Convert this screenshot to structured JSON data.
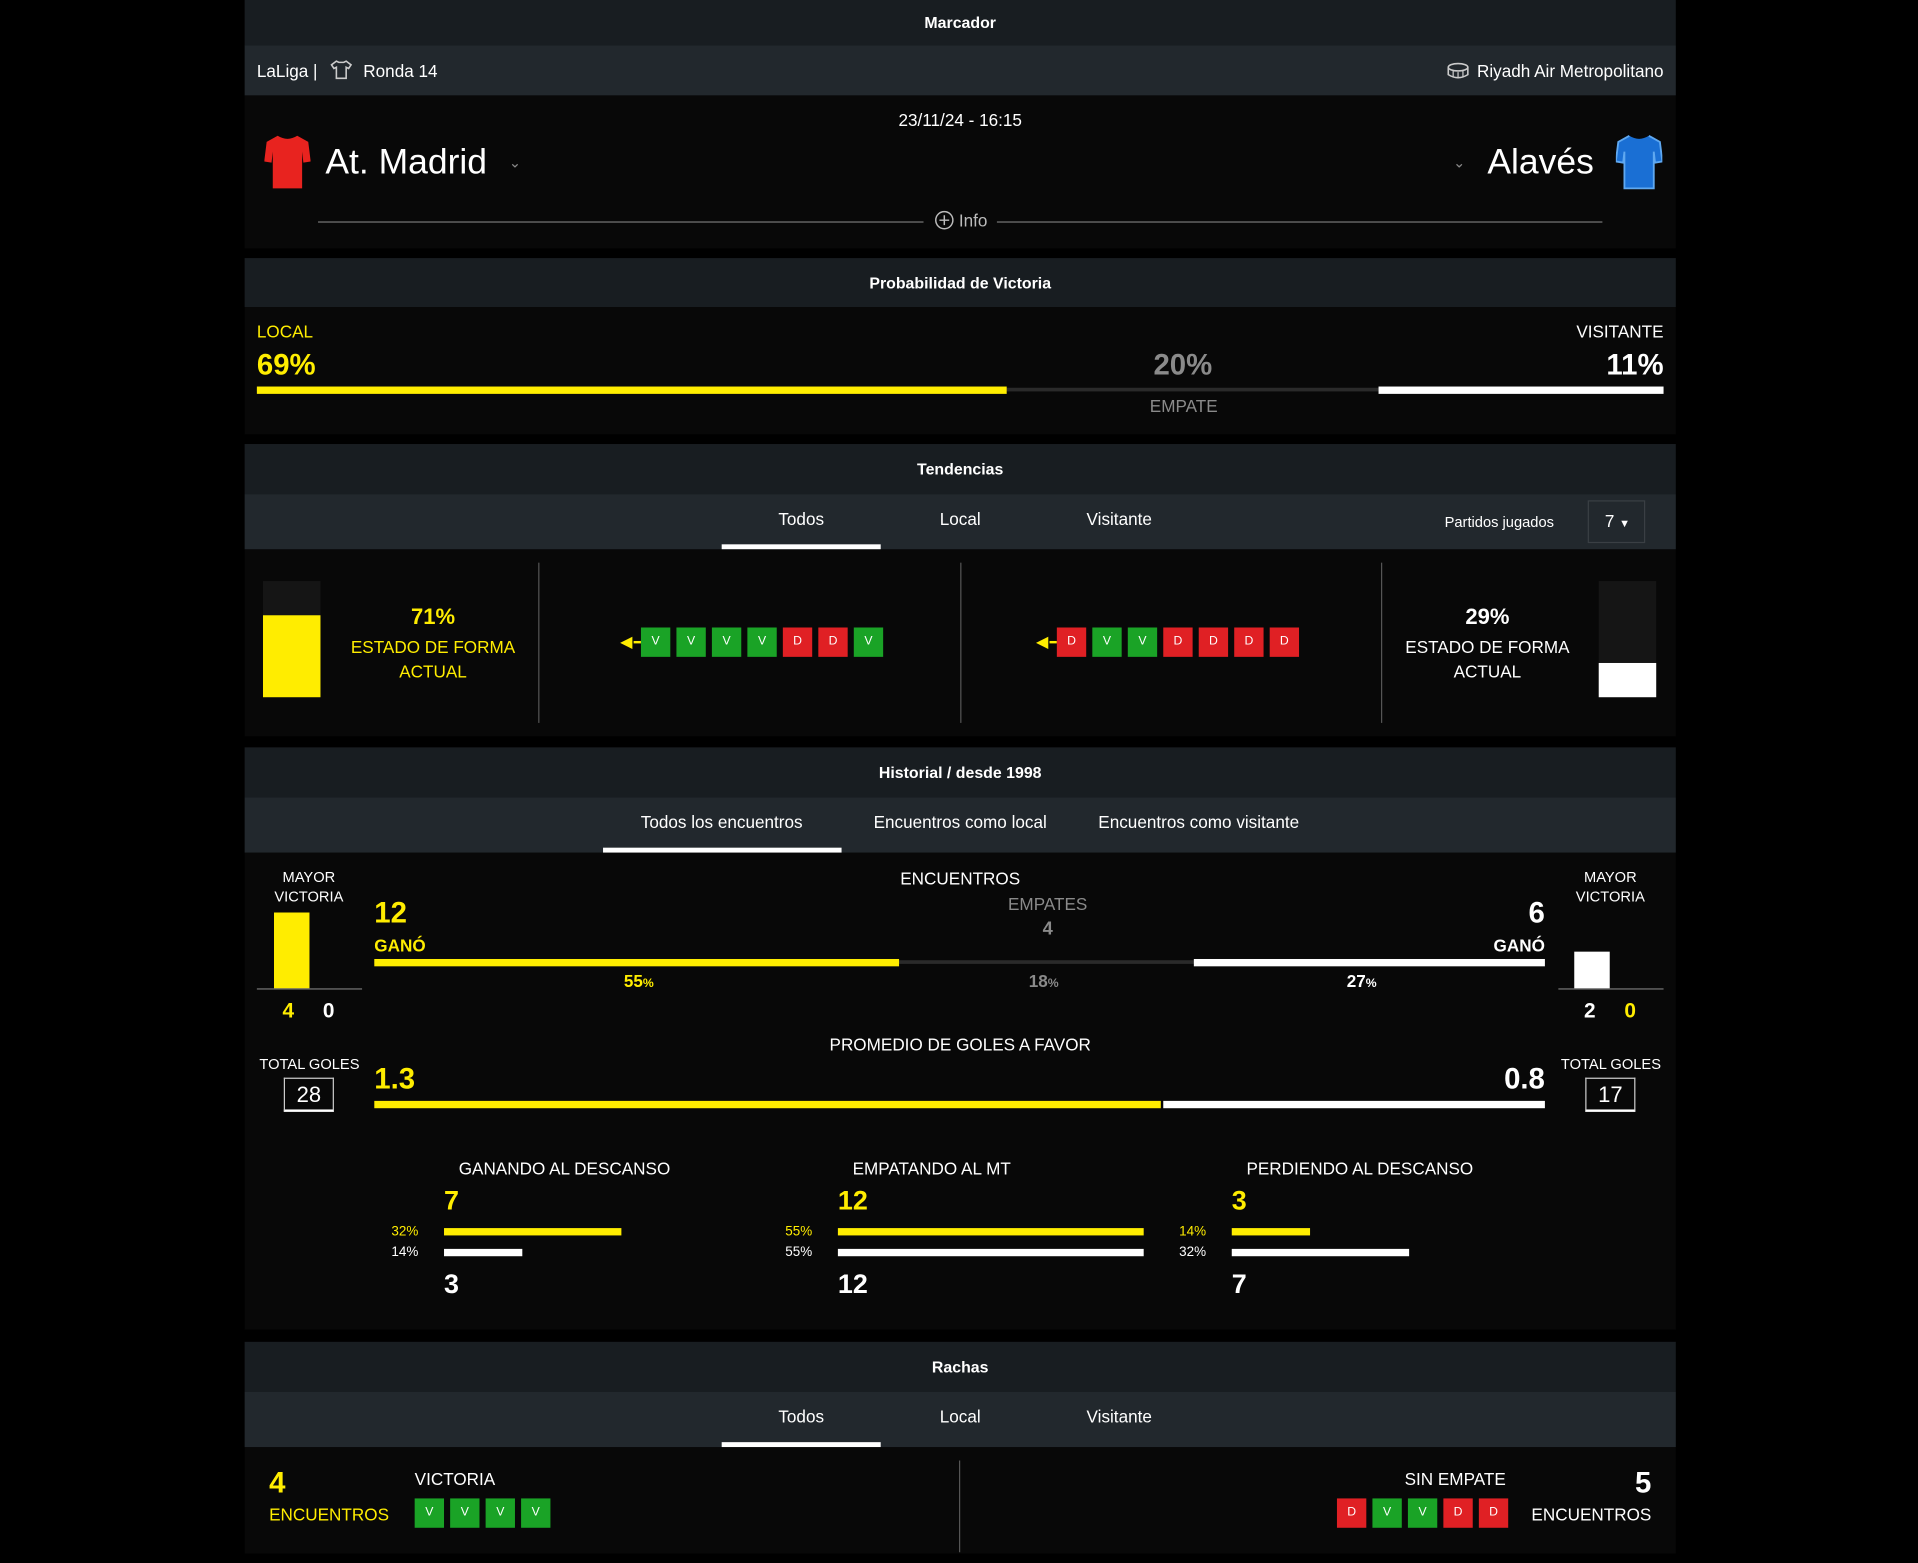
{
  "marcador": {
    "title": "Marcador",
    "league": "LaLiga |",
    "round": "Ronda 14",
    "stadium": "Riyadh Air Metropolitano",
    "datetime": "23/11/24 - 16:15",
    "home": "At. Madrid",
    "away": "Alavés",
    "info": "Info",
    "home_shirt_color": "#e8231f",
    "away_shirt_color": "#1a6fd4"
  },
  "prob": {
    "title": "Probabilidad de Victoria",
    "local_label": "LOCAL",
    "local_pct": "69%",
    "local_value": 0.69,
    "draw_pct": "20%",
    "draw_label": "EMPATE",
    "draw_value": 0.2,
    "away_label": "VISITANTE",
    "away_pct": "11%",
    "away_value": 0.11
  },
  "tend": {
    "title": "Tendencias",
    "tabs": [
      "Todos",
      "Local",
      "Visitante"
    ],
    "played_label": "Partidos jugados",
    "played_value": "7",
    "home_form_pct": "71%",
    "home_form_value": 0.71,
    "home_form_label": "ESTADO DE FORMA ACTUAL",
    "away_form_pct": "29%",
    "away_form_value": 0.29,
    "away_form_label": "ESTADO DE FORMA ACTUAL",
    "home_results": [
      "V",
      "V",
      "V",
      "V",
      "D",
      "D",
      "V"
    ],
    "away_results": [
      "D",
      "V",
      "V",
      "D",
      "D",
      "D",
      "D"
    ]
  },
  "hist": {
    "title": "Historial / desde 1998",
    "tabs": [
      "Todos los encuentros",
      "Encuentros como local",
      "Encuentros como visitante"
    ],
    "mayor_victoria": "MAYOR VICTORIA",
    "home_big_win": [
      "4",
      "0"
    ],
    "away_big_win": [
      "2",
      "0"
    ],
    "encuentros": "ENCUENTROS",
    "home_wins": "12",
    "home_won_label": "GANÓ",
    "empates_label": "EMPATES",
    "draws": "4",
    "away_wins": "6",
    "away_won_label": "GANÓ",
    "home_pct": "55",
    "draw_pct": "18",
    "away_pct": "27",
    "pct_sign": "%",
    "home_share": 0.55,
    "draw_share": 0.18,
    "away_share": 0.27,
    "total_goles": "TOTAL GOLES",
    "home_goals": "28",
    "away_goals": "17",
    "promedio": "PROMEDIO DE GOLES A FAVOR",
    "home_avg": "1.3",
    "away_avg": "0.8",
    "home_avg_value": 1.3,
    "away_avg_value": 0.8,
    "half": [
      {
        "label": "GANANDO AL DESCANSO",
        "home": "7",
        "home_pct": "32%",
        "home_value": 0.32,
        "away": "3",
        "away_pct": "14%",
        "away_value": 0.14
      },
      {
        "label": "EMPATANDO AL MT",
        "home": "12",
        "home_pct": "55%",
        "home_value": 0.55,
        "away": "12",
        "away_pct": "55%",
        "away_value": 0.55
      },
      {
        "label": "PERDIENDO AL DESCANSO",
        "home": "3",
        "home_pct": "14%",
        "home_value": 0.14,
        "away": "7",
        "away_pct": "32%",
        "away_value": 0.32
      }
    ]
  },
  "rachas": {
    "title": "Rachas",
    "tabs": [
      "Todos",
      "Local",
      "Visitante"
    ],
    "home_count": "4",
    "home_enc": "ENCUENTROS",
    "home_type": "VICTORIA",
    "home_chips": [
      "V",
      "V",
      "V",
      "V"
    ],
    "away_count": "5",
    "away_enc": "ENCUENTROS",
    "away_type": "SIN EMPATE",
    "away_chips": [
      "D",
      "V",
      "V",
      "D",
      "D"
    ]
  },
  "colors": {
    "yellow": "#ffed00",
    "win": "#1aa326",
    "loss": "#e02024",
    "panel": "#181d21"
  }
}
